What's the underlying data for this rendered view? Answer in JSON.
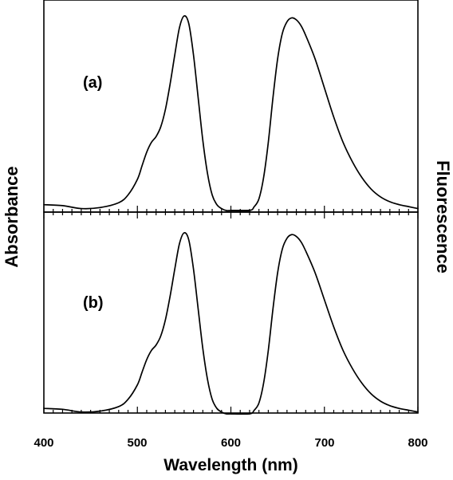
{
  "chart_data": {
    "type": "line",
    "xlabel": "Wavelength (nm)",
    "ylabel_left": "Absorbance",
    "ylabel_right": "Fluorescence",
    "xlim": [
      400,
      800
    ],
    "x_major_ticks": [
      400,
      500,
      600,
      700,
      800
    ],
    "x_tick_labels": [
      "400",
      "500",
      "600",
      "700",
      "800"
    ],
    "x_minor_step": 10,
    "grid": false,
    "panels": [
      {
        "label": "(a)",
        "ylim": [
          0,
          1.03
        ],
        "series": [
          {
            "role": "absorbance",
            "x": [
              400,
              420,
              440,
              460,
              480,
              490,
              500,
              505,
              510,
              515,
              520,
              525,
              530,
              535,
              540,
              545,
              550,
              555,
              560,
              565,
              570,
              575,
              580,
              585,
              590,
              595,
              600,
              610,
              620
            ],
            "y": [
              0.03,
              0.025,
              0.01,
              0.015,
              0.04,
              0.08,
              0.16,
              0.23,
              0.3,
              0.35,
              0.38,
              0.43,
              0.52,
              0.65,
              0.8,
              0.94,
              1.0,
              0.96,
              0.8,
              0.58,
              0.36,
              0.19,
              0.08,
              0.03,
              0.01,
              0.0,
              0.0,
              0.0,
              0.0
            ]
          },
          {
            "role": "fluorescence",
            "x": [
              600,
              620,
              625,
              630,
              635,
              640,
              645,
              650,
              655,
              660,
              665,
              670,
              675,
              680,
              690,
              700,
              710,
              720,
              730,
              740,
              750,
              760,
              770,
              780,
              790,
              800
            ],
            "y": [
              0.0,
              0.0,
              0.02,
              0.06,
              0.17,
              0.35,
              0.58,
              0.78,
              0.91,
              0.97,
              0.99,
              0.98,
              0.95,
              0.9,
              0.78,
              0.63,
              0.48,
              0.35,
              0.25,
              0.17,
              0.11,
              0.07,
              0.045,
              0.03,
              0.02,
              0.01
            ]
          }
        ]
      },
      {
        "label": "(b)",
        "ylim": [
          0,
          1.03
        ],
        "series": [
          {
            "role": "absorbance",
            "x": [
              400,
              420,
              440,
              460,
              480,
              490,
              500,
              505,
              510,
              515,
              520,
              525,
              530,
              535,
              540,
              545,
              550,
              555,
              560,
              565,
              570,
              575,
              580,
              585,
              590,
              595,
              600,
              610,
              620
            ],
            "y": [
              0.03,
              0.025,
              0.01,
              0.015,
              0.04,
              0.08,
              0.16,
              0.23,
              0.3,
              0.35,
              0.38,
              0.43,
              0.52,
              0.65,
              0.8,
              0.94,
              1.0,
              0.96,
              0.8,
              0.58,
              0.36,
              0.19,
              0.08,
              0.03,
              0.01,
              0.0,
              0.0,
              0.0,
              0.0
            ]
          },
          {
            "role": "fluorescence",
            "x": [
              600,
              620,
              625,
              630,
              635,
              640,
              645,
              650,
              655,
              660,
              665,
              670,
              675,
              680,
              690,
              700,
              710,
              720,
              730,
              740,
              750,
              760,
              770,
              780,
              790,
              800
            ],
            "y": [
              0.0,
              0.0,
              0.02,
              0.06,
              0.17,
              0.35,
              0.58,
              0.78,
              0.91,
              0.97,
              0.99,
              0.98,
              0.95,
              0.9,
              0.78,
              0.63,
              0.48,
              0.35,
              0.25,
              0.17,
              0.11,
              0.07,
              0.045,
              0.03,
              0.02,
              0.01
            ]
          }
        ]
      }
    ]
  }
}
